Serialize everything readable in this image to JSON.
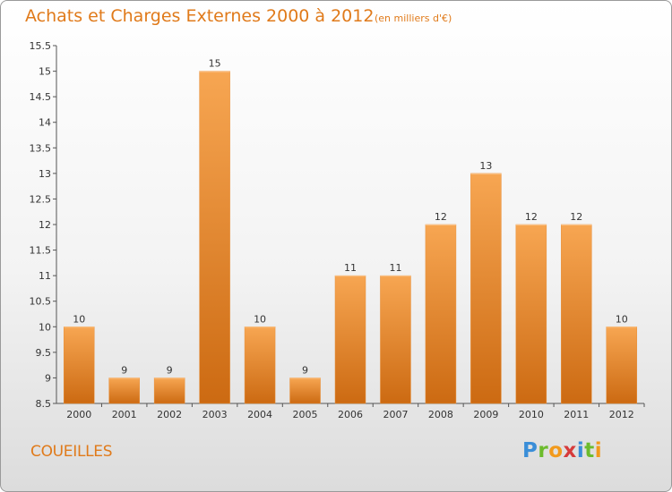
{
  "header": {
    "title": "Achats et Charges Externes 2000 à 2012",
    "subtitle": "(en milliers d'€)"
  },
  "footer": {
    "commune": "COUEILLES",
    "logo_text": "Proxiti"
  },
  "colors": {
    "bar_light": "#f7a652",
    "bar_dark": "#cc6a12",
    "accent": "#e07a1a"
  },
  "chart_data": {
    "type": "bar",
    "title": "Achats et Charges Externes 2000 à 2012",
    "subtitle": "(en milliers d'€)",
    "xlabel": "",
    "ylabel": "",
    "categories": [
      "2000",
      "2001",
      "2002",
      "2003",
      "2004",
      "2005",
      "2006",
      "2007",
      "2008",
      "2009",
      "2010",
      "2011",
      "2012"
    ],
    "values": [
      10,
      9,
      9,
      15,
      10,
      9,
      11,
      11,
      12,
      13,
      12,
      12,
      10
    ],
    "ylim": [
      8.5,
      15.5
    ],
    "yticks": [
      8.5,
      9,
      9.5,
      10,
      10.5,
      11,
      11.5,
      12,
      12.5,
      13,
      13.5,
      14,
      14.5,
      15,
      15.5
    ],
    "ytick_labels": [
      "8.5",
      "9",
      "9.5",
      "10",
      "10.5",
      "11",
      "11.5",
      "12",
      "12.5",
      "13",
      "13.5",
      "14",
      "14.5",
      "15",
      "15.5"
    ],
    "grid": false,
    "legend": "none"
  }
}
